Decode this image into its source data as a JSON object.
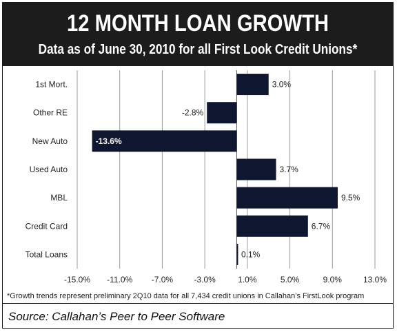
{
  "header": {
    "title": "12 MONTH LOAN GROWTH",
    "subtitle": "Data as of June 30, 2010 for all First Look Credit Unions*"
  },
  "chart_data": {
    "type": "bar",
    "orientation": "horizontal",
    "categories": [
      "1st Mort.",
      "Other RE",
      "New Auto",
      "Used Auto",
      "MBL",
      "Credit Card",
      "Total Loans"
    ],
    "values": [
      3.0,
      -2.8,
      -13.6,
      3.7,
      9.5,
      6.7,
      0.1
    ],
    "value_labels": [
      "3.0%",
      "-2.8%",
      "-13.6%",
      "3.7%",
      "9.5%",
      "6.7%",
      "0.1%"
    ],
    "xlim": [
      -15.0,
      13.0
    ],
    "x_ticks": [
      -15.0,
      -11.0,
      -7.0,
      -3.0,
      1.0,
      5.0,
      9.0,
      13.0
    ],
    "x_tick_labels": [
      "-15.0%",
      "-11.0%",
      "-7.0%",
      "-3.0%",
      "1.0%",
      "5.0%",
      "9.0%",
      "13.0%"
    ],
    "grid": true,
    "bar_color": "#0f1630",
    "grid_color": "#9a9a9a"
  },
  "footnote": "*Growth trends represent preliminary 2Q10 data for all 7,434 credit unions in Callahan’s FirstLook program",
  "source": "Source: Callahan’s Peer to Peer Software"
}
